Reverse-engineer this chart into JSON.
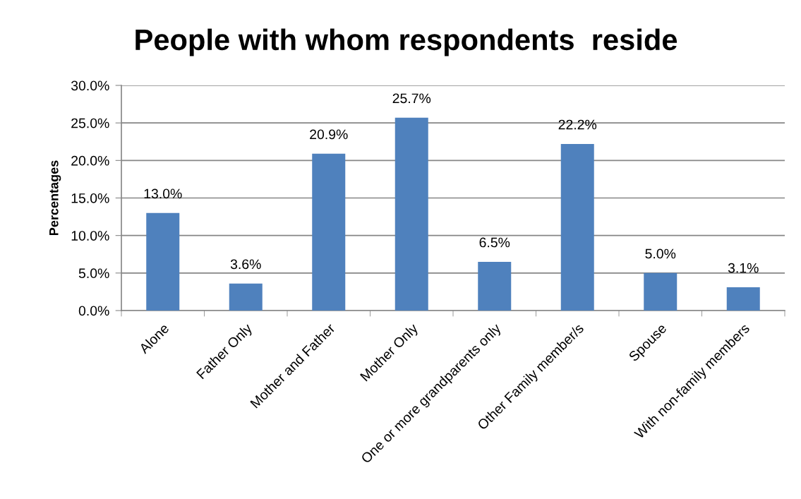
{
  "chart_data": {
    "type": "bar",
    "title": "People with whom respondents  reside",
    "ylabel": "Percentages",
    "categories": [
      "Alone",
      "Father Only",
      "Mother and Father",
      "Mother Only",
      "One or more grandparents only",
      "Other Family member/s",
      "Spouse",
      "With non-family members"
    ],
    "values": [
      13.0,
      3.6,
      20.9,
      25.7,
      6.5,
      22.2,
      5.0,
      3.1
    ],
    "value_labels": [
      "13.0%",
      "3.6%",
      "20.9%",
      "25.7%",
      "6.5%",
      "22.2%",
      "5.0%",
      "3.1%"
    ],
    "color": "#4f81bd",
    "ylim": [
      0,
      30
    ],
    "yticks": [
      {
        "value": 0,
        "label": "0.0%"
      },
      {
        "value": 5,
        "label": "5.0%"
      },
      {
        "value": 10,
        "label": "10.0%"
      },
      {
        "value": 15,
        "label": "15.0%"
      },
      {
        "value": 20,
        "label": "20.0%"
      },
      {
        "value": 25,
        "label": "25.0%"
      },
      {
        "value": 30,
        "label": "30.0%"
      }
    ],
    "grid": "y",
    "legend": false
  }
}
